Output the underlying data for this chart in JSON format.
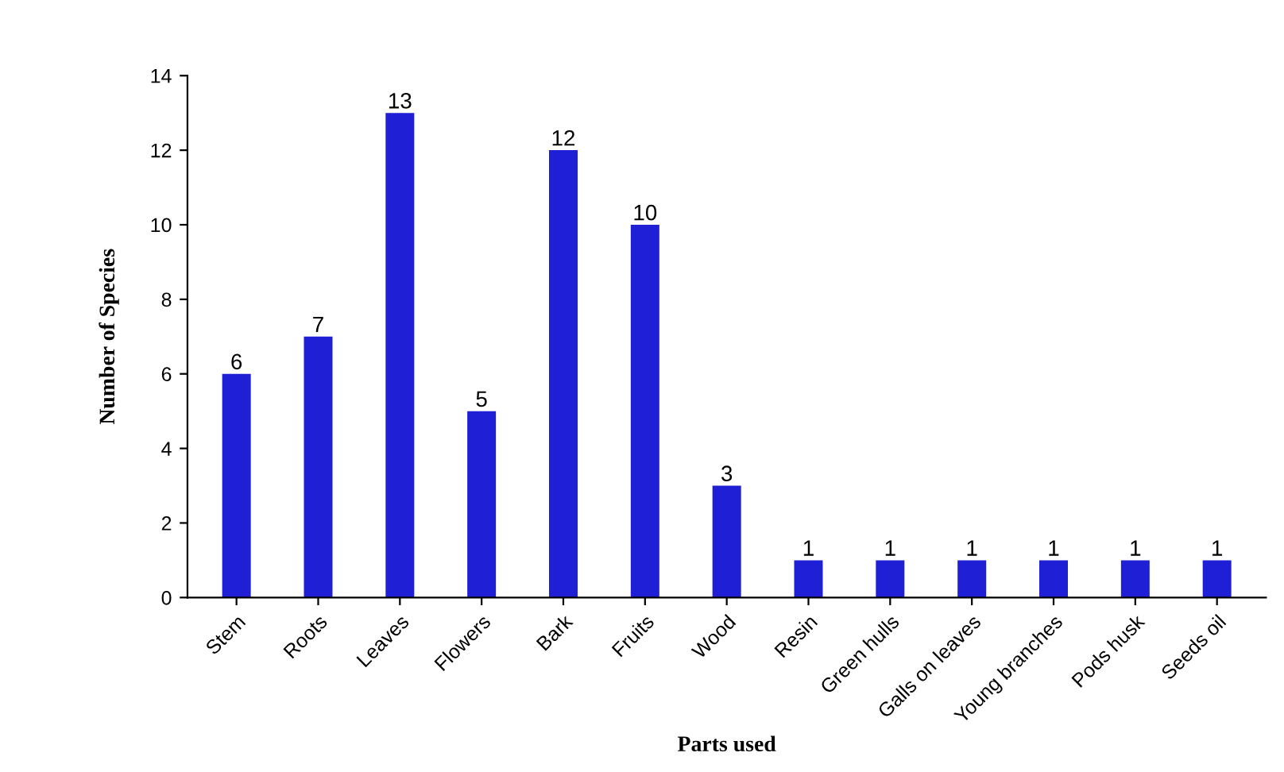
{
  "chart_data": {
    "type": "bar",
    "xlabel": "Parts used",
    "ylabel": "Number of Species",
    "categories": [
      "Stem",
      "Roots",
      "Leaves",
      "Flowers",
      "Bark",
      "Fruits",
      "Wood",
      "Resin",
      "Green hulls",
      "Galls on leaves",
      "Young branches",
      "Pods husk",
      "Seeds oil"
    ],
    "values": [
      6,
      7,
      13,
      5,
      12,
      10,
      3,
      1,
      1,
      1,
      1,
      1,
      1
    ],
    "color": "#1f1fd6",
    "ylim": [
      0,
      14
    ],
    "yticks": [
      0,
      2,
      4,
      6,
      8,
      10,
      12,
      14
    ],
    "grid": false,
    "legend": false,
    "data_labels": true
  }
}
